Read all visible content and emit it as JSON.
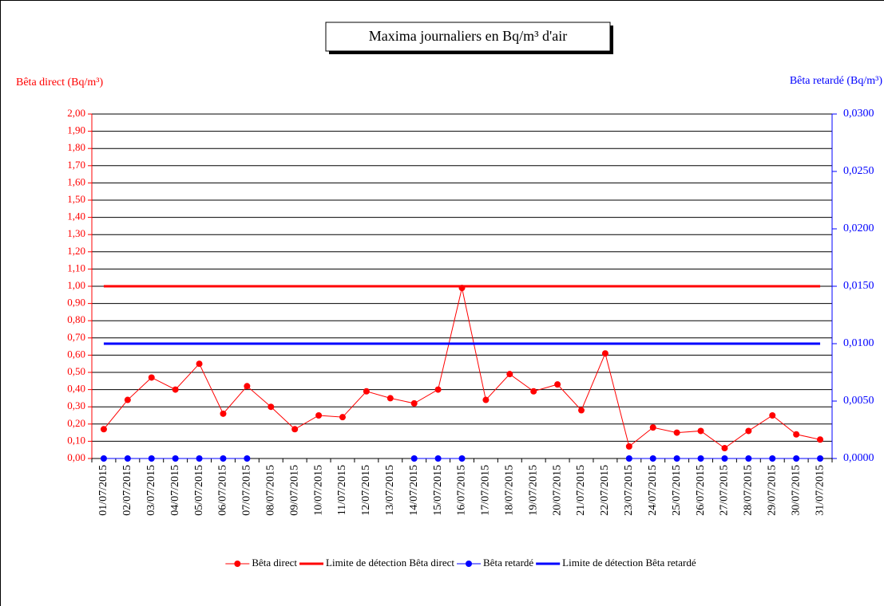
{
  "chart_data": {
    "type": "line",
    "title": "Maxima journaliers  en Bq/m³ d'air",
    "y_label": "Bêta direct (Bq/m³)",
    "y2_label": "Bêta retardé (Bq/m³)",
    "categories": [
      "01/07/2015",
      "02/07/2015",
      "03/07/2015",
      "04/07/2015",
      "05/07/2015",
      "06/07/2015",
      "07/07/2015",
      "08/07/2015",
      "09/07/2015",
      "10/07/2015",
      "11/07/2015",
      "12/07/2015",
      "13/07/2015",
      "14/07/2015",
      "15/07/2015",
      "16/07/2015",
      "17/07/2015",
      "18/07/2015",
      "19/07/2015",
      "20/07/2015",
      "21/07/2015",
      "22/07/2015",
      "23/07/2015",
      "24/07/2015",
      "25/07/2015",
      "26/07/2015",
      "27/07/2015",
      "28/07/2015",
      "29/07/2015",
      "30/07/2015",
      "31/07/2015"
    ],
    "series": [
      {
        "name": "Bêta direct",
        "color": "#ff0000",
        "line_width": 1,
        "markers": true,
        "values": [
          0.17,
          0.34,
          0.47,
          0.4,
          0.55,
          0.26,
          0.42,
          0.3,
          0.17,
          0.25,
          0.24,
          0.39,
          0.35,
          0.32,
          0.4,
          0.99,
          0.34,
          0.49,
          0.39,
          0.43,
          0.28,
          0.61,
          0.07,
          0.18,
          0.15,
          0.16,
          0.06,
          0.16,
          0.25,
          0.14,
          0.11
        ]
      },
      {
        "name": "Limite de détection Bêta direct",
        "color": "#ff0000",
        "line_width": 3,
        "markers": false,
        "values": [
          1,
          1,
          1,
          1,
          1,
          1,
          1,
          1,
          1,
          1,
          1,
          1,
          1,
          1,
          1,
          1,
          1,
          1,
          1,
          1,
          1,
          1,
          1,
          1,
          1,
          1,
          1,
          1,
          1,
          1,
          1
        ]
      },
      {
        "name": "Bêta retardé",
        "color": "#0000ff",
        "line_width": 1,
        "markers": true,
        "axis": "y2",
        "values": [
          0,
          0,
          0,
          0,
          0,
          0,
          0,
          null,
          null,
          null,
          null,
          null,
          null,
          0,
          0,
          0,
          null,
          null,
          null,
          null,
          null,
          null,
          0,
          0,
          0,
          0,
          0,
          0,
          0,
          0,
          0
        ]
      },
      {
        "name": "Limite de détection Bêta retardé",
        "color": "#0000ff",
        "line_width": 3,
        "markers": false,
        "axis": "y2",
        "values": [
          0.01,
          0.01,
          0.01,
          0.01,
          0.01,
          0.01,
          0.01,
          0.01,
          0.01,
          0.01,
          0.01,
          0.01,
          0.01,
          0.01,
          0.01,
          0.01,
          0.01,
          0.01,
          0.01,
          0.01,
          0.01,
          0.01,
          0.01,
          0.01,
          0.01,
          0.01,
          0.01,
          0.01,
          0.01,
          0.01,
          0.01
        ]
      }
    ],
    "ylim": [
      0,
      2
    ],
    "yticks": [
      {
        "value": 0,
        "label": "0,00"
      },
      {
        "value": 0.1,
        "label": "0,10"
      },
      {
        "value": 0.2,
        "label": "0,20"
      },
      {
        "value": 0.3,
        "label": "0,30"
      },
      {
        "value": 0.4,
        "label": "0,40"
      },
      {
        "value": 0.5,
        "label": "0,50"
      },
      {
        "value": 0.6,
        "label": "0,60"
      },
      {
        "value": 0.7,
        "label": "0,70"
      },
      {
        "value": 0.8,
        "label": "0,80"
      },
      {
        "value": 0.9,
        "label": "0,90"
      },
      {
        "value": 1,
        "label": "1,00"
      },
      {
        "value": 1.1,
        "label": "1,10"
      },
      {
        "value": 1.2,
        "label": "1,20"
      },
      {
        "value": 1.3,
        "label": "1,30"
      },
      {
        "value": 1.4,
        "label": "1,40"
      },
      {
        "value": 1.5,
        "label": "1,50"
      },
      {
        "value": 1.6,
        "label": "1,60"
      },
      {
        "value": 1.7,
        "label": "1,70"
      },
      {
        "value": 1.8,
        "label": "1,80"
      },
      {
        "value": 1.9,
        "label": "1,90"
      },
      {
        "value": 2,
        "label": "2,00"
      }
    ],
    "y2lim": [
      0,
      0.03
    ],
    "y2ticks": [
      {
        "value": 0,
        "label": "0,0000"
      },
      {
        "value": 0.005,
        "label": "0,0050"
      },
      {
        "value": 0.01,
        "label": "0,0100"
      },
      {
        "value": 0.015,
        "label": "0,0150"
      },
      {
        "value": 0.02,
        "label": "0,0200"
      },
      {
        "value": 0.025,
        "label": "0,0250"
      },
      {
        "value": 0.03,
        "label": "0,0300"
      }
    ],
    "grid": true,
    "legend": "bottom"
  }
}
